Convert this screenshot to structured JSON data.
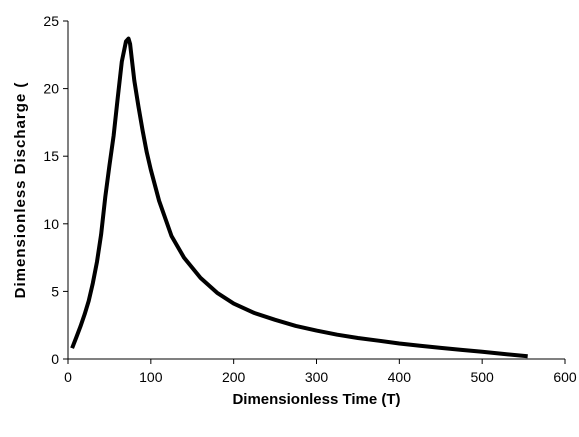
{
  "chart_data": {
    "type": "line",
    "xlabel": "Dimensionless Time (T)",
    "ylabel": "Dimensionless Discharge (",
    "xlim": [
      0,
      600
    ],
    "ylim": [
      0,
      25
    ],
    "x_ticks": [
      0,
      100,
      200,
      300,
      400,
      500,
      600
    ],
    "y_ticks": [
      0,
      5,
      10,
      15,
      20,
      25
    ],
    "x_tick_labels": [
      "0",
      "100",
      "200",
      "300",
      "400",
      "500",
      "600"
    ],
    "y_tick_labels": [
      "0",
      "5",
      "10",
      "15",
      "20",
      "25"
    ],
    "grid": false,
    "legend": "none",
    "series": [
      {
        "color": "#000000",
        "x": [
          5,
          10,
          15,
          20,
          25,
          30,
          35,
          40,
          45,
          50,
          55,
          60,
          65,
          70,
          73,
          75,
          77,
          80,
          85,
          90,
          95,
          100,
          110,
          125,
          140,
          160,
          180,
          200,
          225,
          250,
          275,
          300,
          325,
          350,
          375,
          400,
          425,
          450,
          475,
          500,
          525,
          555
        ],
        "y": [
          0.8,
          1.6,
          2.4,
          3.3,
          4.3,
          5.6,
          7.2,
          9.2,
          12.0,
          14.3,
          16.5,
          19.3,
          22.0,
          23.5,
          23.7,
          23.3,
          22.2,
          20.6,
          18.7,
          16.9,
          15.3,
          14.0,
          11.7,
          9.1,
          7.5,
          6.0,
          4.9,
          4.1,
          3.4,
          2.9,
          2.45,
          2.1,
          1.8,
          1.55,
          1.35,
          1.15,
          0.98,
          0.82,
          0.67,
          0.53,
          0.38,
          0.2
        ]
      }
    ]
  }
}
